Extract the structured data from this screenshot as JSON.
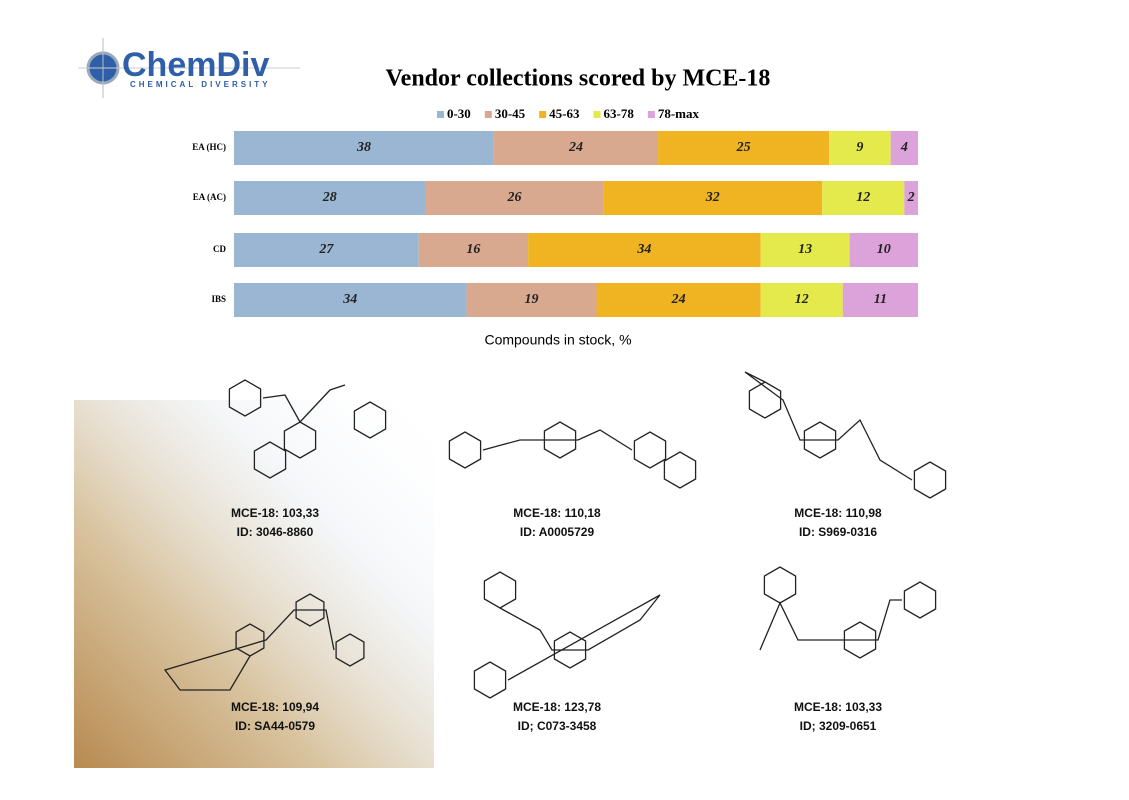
{
  "logo": {
    "name": "ChemDiv",
    "tagline": "CHEMICAL DIVERSITY"
  },
  "chart_data": {
    "type": "bar",
    "orientation": "horizontal",
    "stacked": true,
    "title": "Vendor collections scored by MCE-18",
    "xlabel": "Compounds in stock, %",
    "categories": [
      "EA (HC)",
      "EA (AC)",
      "CD",
      "IBS"
    ],
    "xlim": [
      0,
      100
    ],
    "legend": "top",
    "series": [
      {
        "name": "0-30",
        "color": "#9bb6d2",
        "values": [
          38,
          28,
          27,
          34
        ]
      },
      {
        "name": "30-45",
        "color": "#d8a88f",
        "values": [
          24,
          26,
          16,
          19
        ]
      },
      {
        "name": "45-63",
        "color": "#f0b322",
        "values": [
          25,
          32,
          34,
          24
        ]
      },
      {
        "name": "63-78",
        "color": "#e4ea4c",
        "values": [
          9,
          12,
          13,
          12
        ]
      },
      {
        "name": "78-max",
        "color": "#dca2da",
        "values": [
          4,
          2,
          10,
          11
        ]
      }
    ]
  },
  "compounds": [
    {
      "score": "MCE-18: 103,33",
      "id": "ID: 3046-8860"
    },
    {
      "score": "MCE-18: 110,18",
      "id": "ID: A0005729"
    },
    {
      "score": "MCE-18: 110,98",
      "id": "ID: S969-0316"
    },
    {
      "score": "MCE-18: 109,94",
      "id": "ID: SA44-0579"
    },
    {
      "score": "MCE-18: 123,78",
      "id": "ID; C073-3458"
    },
    {
      "score": "MCE-18: 103,33",
      "id": "ID; 3209-0651"
    }
  ]
}
